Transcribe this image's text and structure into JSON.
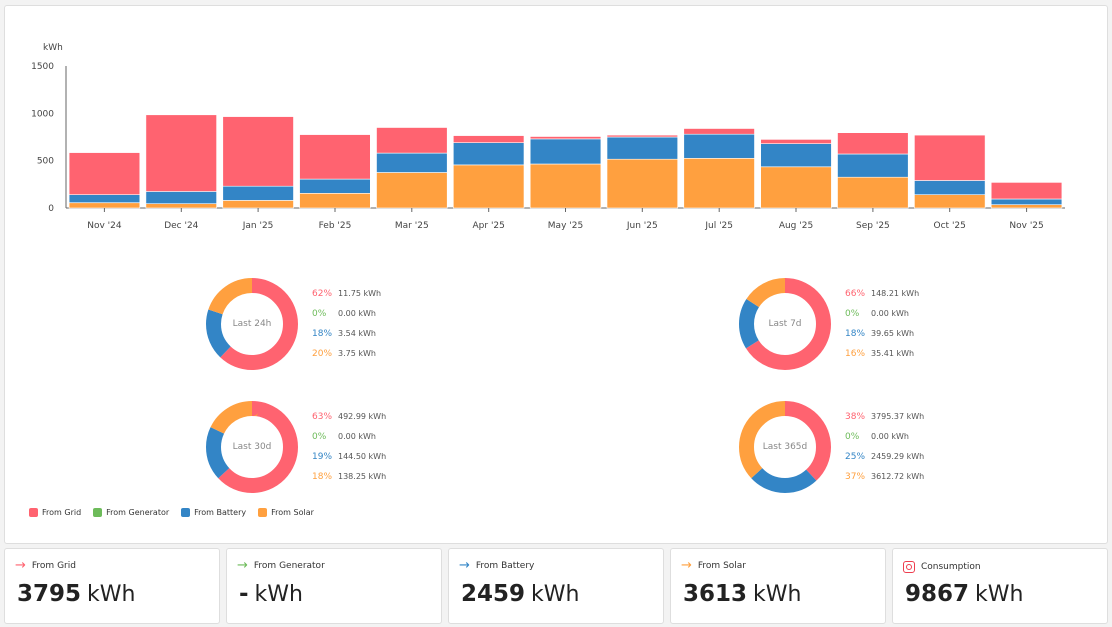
{
  "colors": {
    "grid": "#ff6370",
    "generator": "#6dbb5a",
    "battery": "#3385c6",
    "solar": "#ffa03f"
  },
  "chart_data": {
    "type": "bar",
    "stacked": true,
    "categories": [
      "Nov '24",
      "Dec '24",
      "Jan '25",
      "Feb '25",
      "Mar '25",
      "Apr '25",
      "May '25",
      "Jun '25",
      "Jul '25",
      "Aug '25",
      "Sep '25",
      "Oct '25",
      "Nov '25"
    ],
    "series": [
      {
        "name": "From Solar",
        "key": "solar",
        "values": [
          55,
          45,
          80,
          155,
          375,
          455,
          465,
          515,
          525,
          435,
          325,
          140,
          35
        ]
      },
      {
        "name": "From Battery",
        "key": "battery",
        "values": [
          85,
          130,
          150,
          150,
          205,
          235,
          265,
          235,
          255,
          245,
          245,
          150,
          60
        ]
      },
      {
        "name": "From Generator",
        "key": "generator",
        "values": [
          0,
          0,
          0,
          0,
          0,
          0,
          0,
          0,
          0,
          0,
          0,
          0,
          0
        ]
      },
      {
        "name": "From Grid",
        "key": "grid",
        "values": [
          445,
          810,
          735,
          470,
          270,
          75,
          25,
          20,
          60,
          45,
          225,
          480,
          175
        ]
      }
    ],
    "ylabel": "kWh",
    "yticks": [
      0,
      500,
      1000,
      1500
    ],
    "ylim": [
      0,
      1500
    ],
    "grid": false,
    "legend": "bottom-left"
  },
  "donuts": [
    {
      "label": "Last 24h",
      "rows": [
        {
          "key": "grid",
          "pct": "62%",
          "val": "11.75 kWh",
          "frac": 0.62
        },
        {
          "key": "generator",
          "pct": "0%",
          "val": "0.00 kWh",
          "frac": 0
        },
        {
          "key": "battery",
          "pct": "18%",
          "val": "3.54 kWh",
          "frac": 0.18
        },
        {
          "key": "solar",
          "pct": "20%",
          "val": "3.75 kWh",
          "frac": 0.2
        }
      ]
    },
    {
      "label": "Last 7d",
      "rows": [
        {
          "key": "grid",
          "pct": "66%",
          "val": "148.21 kWh",
          "frac": 0.66
        },
        {
          "key": "generator",
          "pct": "0%",
          "val": "0.00 kWh",
          "frac": 0
        },
        {
          "key": "battery",
          "pct": "18%",
          "val": "39.65 kWh",
          "frac": 0.18
        },
        {
          "key": "solar",
          "pct": "16%",
          "val": "35.41 kWh",
          "frac": 0.16
        }
      ]
    },
    {
      "label": "Last 30d",
      "rows": [
        {
          "key": "grid",
          "pct": "63%",
          "val": "492.99 kWh",
          "frac": 0.63
        },
        {
          "key": "generator",
          "pct": "0%",
          "val": "0.00 kWh",
          "frac": 0
        },
        {
          "key": "battery",
          "pct": "19%",
          "val": "144.50 kWh",
          "frac": 0.19
        },
        {
          "key": "solar",
          "pct": "18%",
          "val": "138.25 kWh",
          "frac": 0.18
        }
      ]
    },
    {
      "label": "Last 365d",
      "rows": [
        {
          "key": "grid",
          "pct": "38%",
          "val": "3795.37 kWh",
          "frac": 0.38
        },
        {
          "key": "generator",
          "pct": "0%",
          "val": "0.00 kWh",
          "frac": 0
        },
        {
          "key": "battery",
          "pct": "25%",
          "val": "2459.29 kWh",
          "frac": 0.25
        },
        {
          "key": "solar",
          "pct": "37%",
          "val": "3612.72 kWh",
          "frac": 0.37
        }
      ]
    }
  ],
  "legend": [
    {
      "key": "grid",
      "label": "From Grid"
    },
    {
      "key": "generator",
      "label": "From Generator"
    },
    {
      "key": "battery",
      "label": "From Battery"
    },
    {
      "key": "solar",
      "label": "From Solar"
    }
  ],
  "cards": [
    {
      "key": "grid",
      "icon": "arrow-right-icon",
      "title": "From Grid",
      "value": "3795",
      "unit": "kWh"
    },
    {
      "key": "generator",
      "icon": "arrow-right-icon",
      "title": "From Generator",
      "value": "-",
      "unit": "kWh"
    },
    {
      "key": "battery",
      "icon": "arrow-right-icon",
      "title": "From Battery",
      "value": "2459",
      "unit": "kWh"
    },
    {
      "key": "solar",
      "icon": "arrow-right-icon",
      "title": "From Solar",
      "value": "3613",
      "unit": "kWh"
    },
    {
      "key": "consumption",
      "icon": "consumption-icon",
      "title": "Consumption",
      "value": "9867",
      "unit": "kWh"
    }
  ]
}
